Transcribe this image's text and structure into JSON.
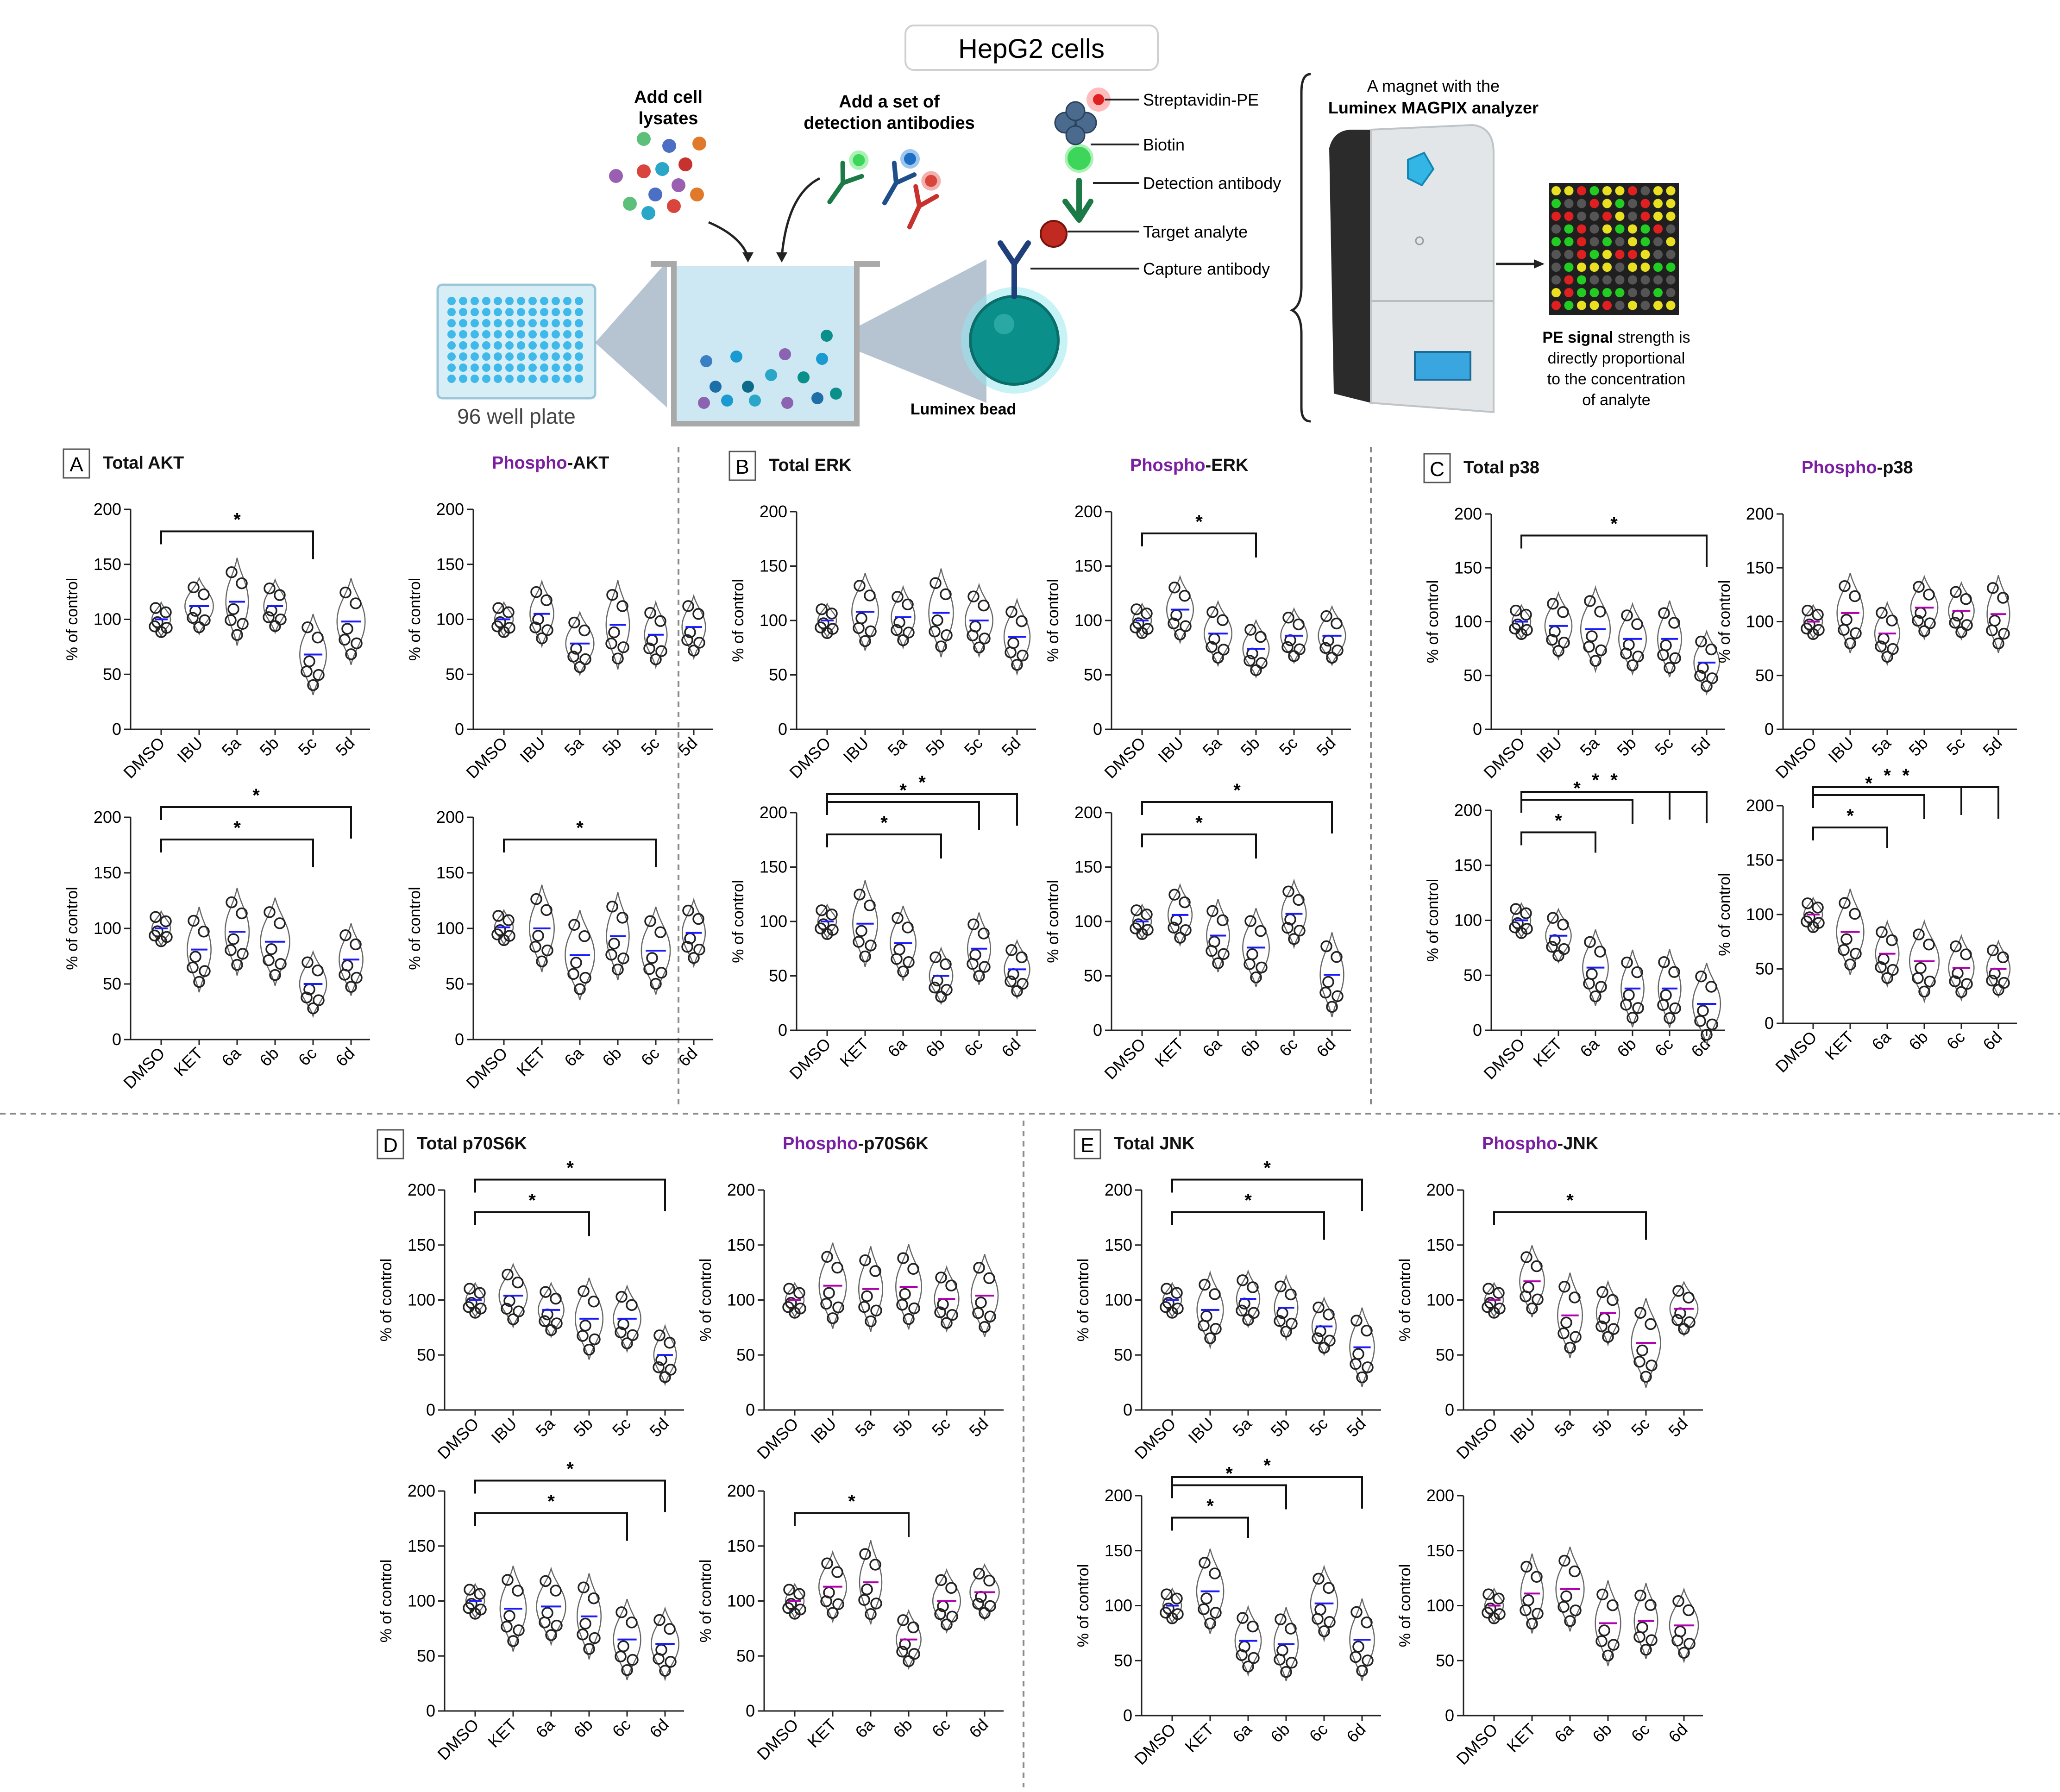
{
  "schematic": {
    "title": "HepG2 cells",
    "add_cell_lysates": [
      "Add cell",
      "lysates"
    ],
    "add_detection": [
      "Add a set of",
      "detection antibodies"
    ],
    "plate_label": "96 well plate",
    "bead_label": "Luminex bead",
    "labels": {
      "streptavidin": "Streptavidin-PE",
      "biotin": "Biotin",
      "detection_ab": "Detection antibody",
      "target": "Target analyte",
      "capture_ab": "Capture antibody"
    },
    "magnet_line1": "A magnet with the",
    "magnet_line2": "Luminex MAGPIX analyzer",
    "pe_bold": "PE signal",
    "pe_rest": [
      " strength is",
      "directly proportional",
      "to the concentration",
      "of analyte"
    ]
  },
  "colors": {
    "phospho": "#7b1fa2",
    "median": "#1a1aff",
    "median_alt": "#b000b0",
    "violin": "#666666",
    "point": "#222222",
    "divider": "#888888"
  },
  "chart_data": [
    {
      "panel": "A",
      "title_prefix": "Total",
      "title_suffix": " AKT",
      "phospho": false,
      "type": "violin",
      "ylabel": "% of control",
      "ylim": [
        0,
        200
      ],
      "yticks": [
        0,
        50,
        100,
        150,
        200
      ],
      "categories": [
        "DMSO",
        "IBU",
        "5a",
        "5b",
        "5c",
        "5d"
      ],
      "medians": [
        100,
        112,
        116,
        112,
        68,
        98
      ],
      "sig": [
        {
          "from": "DMSO",
          "to": "5c",
          "label": "*"
        }
      ]
    },
    {
      "panel": "",
      "title_prefix": "Phospho",
      "title_suffix": "-AKT",
      "phospho": true,
      "type": "violin",
      "ylabel": "% of control",
      "ylim": [
        0,
        200
      ],
      "yticks": [
        0,
        50,
        100,
        150,
        200
      ],
      "categories": [
        "DMSO",
        "IBU",
        "5a",
        "5b",
        "5c",
        "5d"
      ],
      "medians": [
        100,
        105,
        78,
        95,
        86,
        93
      ],
      "sig": []
    },
    {
      "panel": "",
      "title_prefix": "",
      "title_suffix": "",
      "phospho": false,
      "type": "violin",
      "ylabel": "% of control",
      "ylim": [
        0,
        200
      ],
      "yticks": [
        0,
        50,
        100,
        150,
        200
      ],
      "categories": [
        "DMSO",
        "KET",
        "6a",
        "6b",
        "6c",
        "6d"
      ],
      "medians": [
        100,
        81,
        97,
        88,
        50,
        72
      ],
      "sig": [
        {
          "from": "DMSO",
          "to": "6c",
          "label": "*"
        },
        {
          "from": "DMSO",
          "to": "6d",
          "label": "*"
        }
      ]
    },
    {
      "panel": "",
      "title_prefix": "",
      "title_suffix": "",
      "phospho": true,
      "type": "violin",
      "ylabel": "% of control",
      "ylim": [
        0,
        200
      ],
      "yticks": [
        0,
        50,
        100,
        150,
        200
      ],
      "categories": [
        "DMSO",
        "KET",
        "6a",
        "6b",
        "6c",
        "6d"
      ],
      "medians": [
        101,
        100,
        76,
        93,
        80,
        96
      ],
      "sig": [
        {
          "from": "DMSO",
          "to": "6c",
          "label": "*"
        }
      ]
    },
    {
      "panel": "B",
      "title_prefix": "Total",
      "title_suffix": " ERK",
      "phospho": false,
      "type": "violin",
      "ylabel": "% of control",
      "ylim": [
        0,
        200
      ],
      "yticks": [
        0,
        50,
        100,
        150,
        200
      ],
      "categories": [
        "DMSO",
        "IBU",
        "5a",
        "5b",
        "5c",
        "5d"
      ],
      "medians": [
        100,
        108,
        103,
        107,
        100,
        85
      ],
      "sig": []
    },
    {
      "panel": "",
      "title_prefix": "Phospho",
      "title_suffix": "-ERK",
      "phospho": true,
      "type": "violin",
      "ylabel": "% of control",
      "ylim": [
        0,
        200
      ],
      "yticks": [
        0,
        50,
        100,
        150,
        200
      ],
      "categories": [
        "DMSO",
        "IBU",
        "5a",
        "5b",
        "5c",
        "5d"
      ],
      "medians": [
        100,
        110,
        88,
        74,
        86,
        86
      ],
      "sig": [
        {
          "from": "DMSO",
          "to": "5b",
          "label": "*"
        }
      ]
    },
    {
      "panel": "",
      "title_prefix": "",
      "title_suffix": "",
      "phospho": false,
      "type": "violin",
      "ylabel": "% of control",
      "ylim": [
        0,
        200
      ],
      "yticks": [
        0,
        50,
        100,
        150,
        200
      ],
      "categories": [
        "DMSO",
        "KET",
        "6a",
        "6b",
        "6c",
        "6d"
      ],
      "medians": [
        100,
        98,
        80,
        50,
        75,
        56
      ],
      "sig": [
        {
          "from": "DMSO",
          "to": "6b",
          "label": "*"
        },
        {
          "from": "DMSO",
          "to": "6c",
          "label": "*"
        },
        {
          "from": "DMSO",
          "to": "6d",
          "label": "*"
        }
      ]
    },
    {
      "panel": "",
      "title_prefix": "",
      "title_suffix": "",
      "phospho": true,
      "type": "violin",
      "ylabel": "% of control",
      "ylim": [
        0,
        200
      ],
      "yticks": [
        0,
        50,
        100,
        150,
        200
      ],
      "categories": [
        "DMSO",
        "KET",
        "6a",
        "6b",
        "6c",
        "6d"
      ],
      "medians": [
        100,
        106,
        87,
        76,
        107,
        51
      ],
      "sig": [
        {
          "from": "DMSO",
          "to": "6b",
          "label": "*"
        },
        {
          "from": "DMSO",
          "to": "6d",
          "label": "*"
        }
      ]
    },
    {
      "panel": "C",
      "title_prefix": "Total",
      "title_suffix": " p38",
      "phospho": false,
      "type": "violin",
      "ylabel": "% of control",
      "ylim": [
        0,
        200
      ],
      "yticks": [
        0,
        50,
        100,
        150,
        200
      ],
      "categories": [
        "DMSO",
        "IBU",
        "5a",
        "5b",
        "5c",
        "5d"
      ],
      "medians": [
        100,
        96,
        93,
        84,
        84,
        62
      ],
      "sig": [
        {
          "from": "DMSO",
          "to": "5d",
          "label": "*"
        }
      ]
    },
    {
      "panel": "",
      "title_prefix": "Phospho",
      "title_suffix": "-p38",
      "phospho": true,
      "type": "violin",
      "ylabel": "% of control",
      "ylim": [
        0,
        200
      ],
      "yticks": [
        0,
        50,
        100,
        150,
        200
      ],
      "categories": [
        "DMSO",
        "IBU",
        "5a",
        "5b",
        "5c",
        "5d"
      ],
      "medians": [
        100,
        108,
        89,
        113,
        110,
        107
      ],
      "sig": []
    },
    {
      "panel": "",
      "title_prefix": "",
      "title_suffix": "",
      "phospho": false,
      "type": "violin",
      "ylabel": "% of control",
      "ylim": [
        0,
        200
      ],
      "yticks": [
        0,
        50,
        100,
        150,
        200
      ],
      "categories": [
        "DMSO",
        "KET",
        "6a",
        "6b",
        "6c",
        "6d"
      ],
      "medians": [
        100,
        86,
        57,
        38,
        38,
        24
      ],
      "sig": [
        {
          "from": "DMSO",
          "to": "6a",
          "label": "*"
        },
        {
          "from": "DMSO",
          "to": "6b",
          "label": "*"
        },
        {
          "from": "DMSO",
          "to": "6c",
          "label": "*"
        },
        {
          "from": "DMSO",
          "to": "6d",
          "label": "*"
        }
      ]
    },
    {
      "panel": "",
      "title_prefix": "",
      "title_suffix": "",
      "phospho": true,
      "type": "violin",
      "ylabel": "% of control",
      "ylim": [
        0,
        200
      ],
      "yticks": [
        0,
        50,
        100,
        150,
        200
      ],
      "categories": [
        "DMSO",
        "KET",
        "6a",
        "6b",
        "6c",
        "6d"
      ],
      "medians": [
        100,
        84,
        64,
        57,
        51,
        50
      ],
      "sig": [
        {
          "from": "DMSO",
          "to": "6a",
          "label": "*"
        },
        {
          "from": "DMSO",
          "to": "6b",
          "label": "*"
        },
        {
          "from": "DMSO",
          "to": "6c",
          "label": "*"
        },
        {
          "from": "DMSO",
          "to": "6d",
          "label": "*"
        }
      ]
    },
    {
      "panel": "D",
      "title_prefix": "Total",
      "title_suffix": " p70S6K",
      "phospho": false,
      "type": "violin",
      "ylabel": "% of control",
      "ylim": [
        0,
        200
      ],
      "yticks": [
        0,
        50,
        100,
        150,
        200
      ],
      "categories": [
        "DMSO",
        "IBU",
        "5a",
        "5b",
        "5c",
        "5d"
      ],
      "medians": [
        100,
        104,
        91,
        83,
        83,
        50
      ],
      "sig": [
        {
          "from": "DMSO",
          "to": "5b",
          "label": "*"
        },
        {
          "from": "DMSO",
          "to": "5d",
          "label": "*"
        }
      ]
    },
    {
      "panel": "",
      "title_prefix": "Phospho",
      "title_suffix": "-p70S6K",
      "phospho": true,
      "type": "violin",
      "ylabel": "% of control",
      "ylim": [
        0,
        200
      ],
      "yticks": [
        0,
        50,
        100,
        150,
        200
      ],
      "categories": [
        "DMSO",
        "IBU",
        "5a",
        "5b",
        "5c",
        "5d"
      ],
      "medians": [
        100,
        113,
        110,
        112,
        101,
        104
      ],
      "sig": []
    },
    {
      "panel": "",
      "title_prefix": "",
      "title_suffix": "",
      "phospho": false,
      "type": "violin",
      "ylabel": "% of control",
      "ylim": [
        0,
        200
      ],
      "yticks": [
        0,
        50,
        100,
        150,
        200
      ],
      "categories": [
        "DMSO",
        "KET",
        "6a",
        "6b",
        "6c",
        "6d"
      ],
      "medians": [
        100,
        93,
        95,
        86,
        65,
        61
      ],
      "sig": [
        {
          "from": "DMSO",
          "to": "6c",
          "label": "*"
        },
        {
          "from": "DMSO",
          "to": "6d",
          "label": "*"
        }
      ]
    },
    {
      "panel": "",
      "title_prefix": "",
      "title_suffix": "",
      "phospho": true,
      "type": "violin",
      "ylabel": "% of control",
      "ylim": [
        0,
        200
      ],
      "yticks": [
        0,
        50,
        100,
        150,
        200
      ],
      "categories": [
        "DMSO",
        "KET",
        "6a",
        "6b",
        "6c",
        "6d"
      ],
      "medians": [
        100,
        113,
        117,
        65,
        100,
        108
      ],
      "sig": [
        {
          "from": "DMSO",
          "to": "6b",
          "label": "*"
        }
      ]
    },
    {
      "panel": "E",
      "title_prefix": "Total",
      "title_suffix": " JNK",
      "phospho": false,
      "type": "violin",
      "ylabel": "% of control",
      "ylim": [
        0,
        200
      ],
      "yticks": [
        0,
        50,
        100,
        150,
        200
      ],
      "categories": [
        "DMSO",
        "IBU",
        "5a",
        "5b",
        "5c",
        "5d"
      ],
      "medians": [
        100,
        91,
        101,
        93,
        76,
        57
      ],
      "sig": [
        {
          "from": "DMSO",
          "to": "5c",
          "label": "*"
        },
        {
          "from": "DMSO",
          "to": "5d",
          "label": "*"
        }
      ]
    },
    {
      "panel": "",
      "title_prefix": "Phospho",
      "title_suffix": "-JNK",
      "phospho": true,
      "type": "violin",
      "ylabel": "% of control",
      "ylim": [
        0,
        200
      ],
      "yticks": [
        0,
        50,
        100,
        150,
        200
      ],
      "categories": [
        "DMSO",
        "IBU",
        "5a",
        "5b",
        "5c",
        "5d"
      ],
      "medians": [
        100,
        117,
        86,
        88,
        61,
        92
      ],
      "sig": [
        {
          "from": "DMSO",
          "to": "5c",
          "label": "*"
        }
      ]
    },
    {
      "panel": "",
      "title_prefix": "",
      "title_suffix": "",
      "phospho": false,
      "type": "violin",
      "ylabel": "% of control",
      "ylim": [
        0,
        200
      ],
      "yticks": [
        0,
        50,
        100,
        150,
        200
      ],
      "categories": [
        "DMSO",
        "KET",
        "6a",
        "6b",
        "6c",
        "6d"
      ],
      "medians": [
        100,
        113,
        68,
        65,
        102,
        69
      ],
      "sig": [
        {
          "from": "DMSO",
          "to": "6a",
          "label": "*"
        },
        {
          "from": "DMSO",
          "to": "6b",
          "label": "*"
        },
        {
          "from": "DMSO",
          "to": "6d",
          "label": "*"
        }
      ]
    },
    {
      "panel": "",
      "title_prefix": "",
      "title_suffix": "",
      "phospho": true,
      "type": "violin",
      "ylabel": "% of control",
      "ylim": [
        0,
        200
      ],
      "yticks": [
        0,
        50,
        100,
        150,
        200
      ],
      "categories": [
        "DMSO",
        "KET",
        "6a",
        "6b",
        "6c",
        "6d"
      ],
      "medians": [
        100,
        111,
        115,
        84,
        86,
        82
      ],
      "sig": []
    }
  ]
}
